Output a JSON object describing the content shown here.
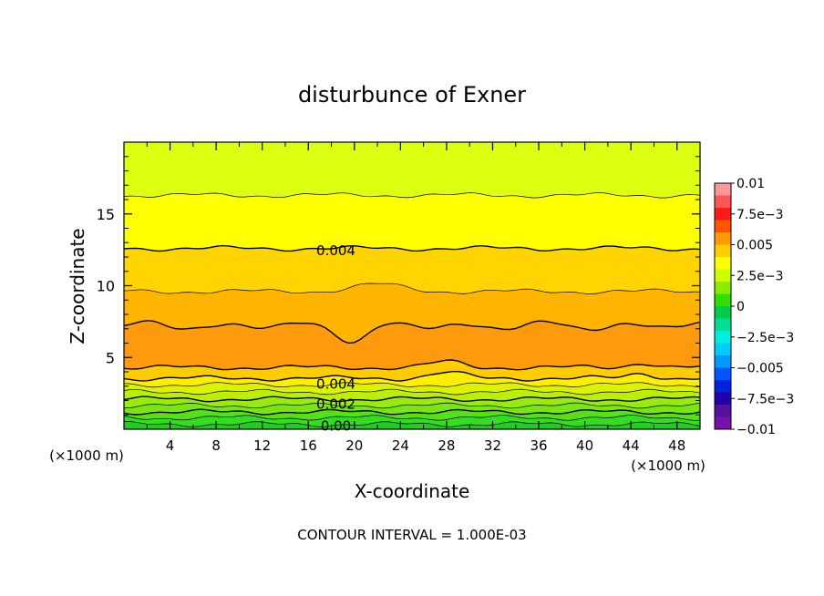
{
  "chart_data": {
    "type": "contour",
    "title": "disturbunce of Exner",
    "xlabel": "X-coordinate",
    "ylabel": "Z-coordinate",
    "x_unit_left": "(×1000 m)",
    "x_unit_right": "(×1000 m)",
    "footer": "CONTOUR INTERVAL = 1.000E-03",
    "xlim": [
      0,
      50
    ],
    "ylim": [
      0,
      20
    ],
    "x_ticks": [
      4,
      8,
      12,
      16,
      20,
      24,
      28,
      32,
      36,
      40,
      44,
      48
    ],
    "x_tick_labels": [
      "4",
      "8",
      "12",
      "16",
      "20",
      "24",
      "28",
      "32",
      "36",
      "40",
      "44",
      "48"
    ],
    "y_ticks": [
      5,
      10,
      15
    ],
    "y_tick_labels": [
      "5",
      "10",
      "15"
    ],
    "bands": [
      {
        "z_low": 0.0,
        "z_high": 0.35,
        "color": "#22cc22"
      },
      {
        "z_low": 0.35,
        "z_high": 0.8,
        "color": "#33dd22"
      },
      {
        "z_low": 0.8,
        "z_high": 1.2,
        "color": "#55e01a"
      },
      {
        "z_low": 1.2,
        "z_high": 1.65,
        "color": "#77e614"
      },
      {
        "z_low": 1.65,
        "z_high": 2.1,
        "color": "#99ea0e"
      },
      {
        "z_low": 2.1,
        "z_high": 2.6,
        "color": "#bbee08"
      },
      {
        "z_low": 2.6,
        "z_high": 3.1,
        "color": "#ddf200"
      },
      {
        "z_low": 3.1,
        "z_high": 3.55,
        "color": "#ffee00"
      },
      {
        "z_low": 3.55,
        "z_high": 4.3,
        "color": "#ffcc00"
      },
      {
        "z_low": 4.3,
        "z_high": 7.2,
        "color": "#ff9a0c"
      },
      {
        "z_low": 7.2,
        "z_high": 9.6,
        "color": "#ffb400"
      },
      {
        "z_low": 9.6,
        "z_high": 12.6,
        "color": "#ffd400"
      },
      {
        "z_low": 12.6,
        "z_high": 16.3,
        "color": "#ffff00"
      },
      {
        "z_low": 16.3,
        "z_high": 20.0,
        "color": "#ddff11"
      }
    ],
    "contour_labels": [
      {
        "text": "0.004",
        "x": 18,
        "z": 12.5
      },
      {
        "text": "0.004",
        "x": 18,
        "z": 3.2
      },
      {
        "text": "0.002",
        "x": 18,
        "z": 1.8
      },
      {
        "text": "0.00",
        "x": 18,
        "z": 0.3
      }
    ],
    "colorbar": {
      "range": [
        -0.01,
        0.01
      ],
      "labels": [
        "0.01",
        "7.5e−3",
        "0.005",
        "2.5e−3",
        "0",
        "−2.5e−3",
        "−0.005",
        "−7.5e−3",
        "−0.01"
      ],
      "colors": [
        "#ff9999",
        "#ff5555",
        "#ff1a1a",
        "#ff5500",
        "#ff9a00",
        "#ffcc00",
        "#ffff00",
        "#ccff00",
        "#88ee00",
        "#33dd00",
        "#00cc44",
        "#00dd99",
        "#00eedd",
        "#00ccff",
        "#0099ff",
        "#0055ff",
        "#0022dd",
        "#2200aa",
        "#551199",
        "#7711aa"
      ]
    }
  }
}
